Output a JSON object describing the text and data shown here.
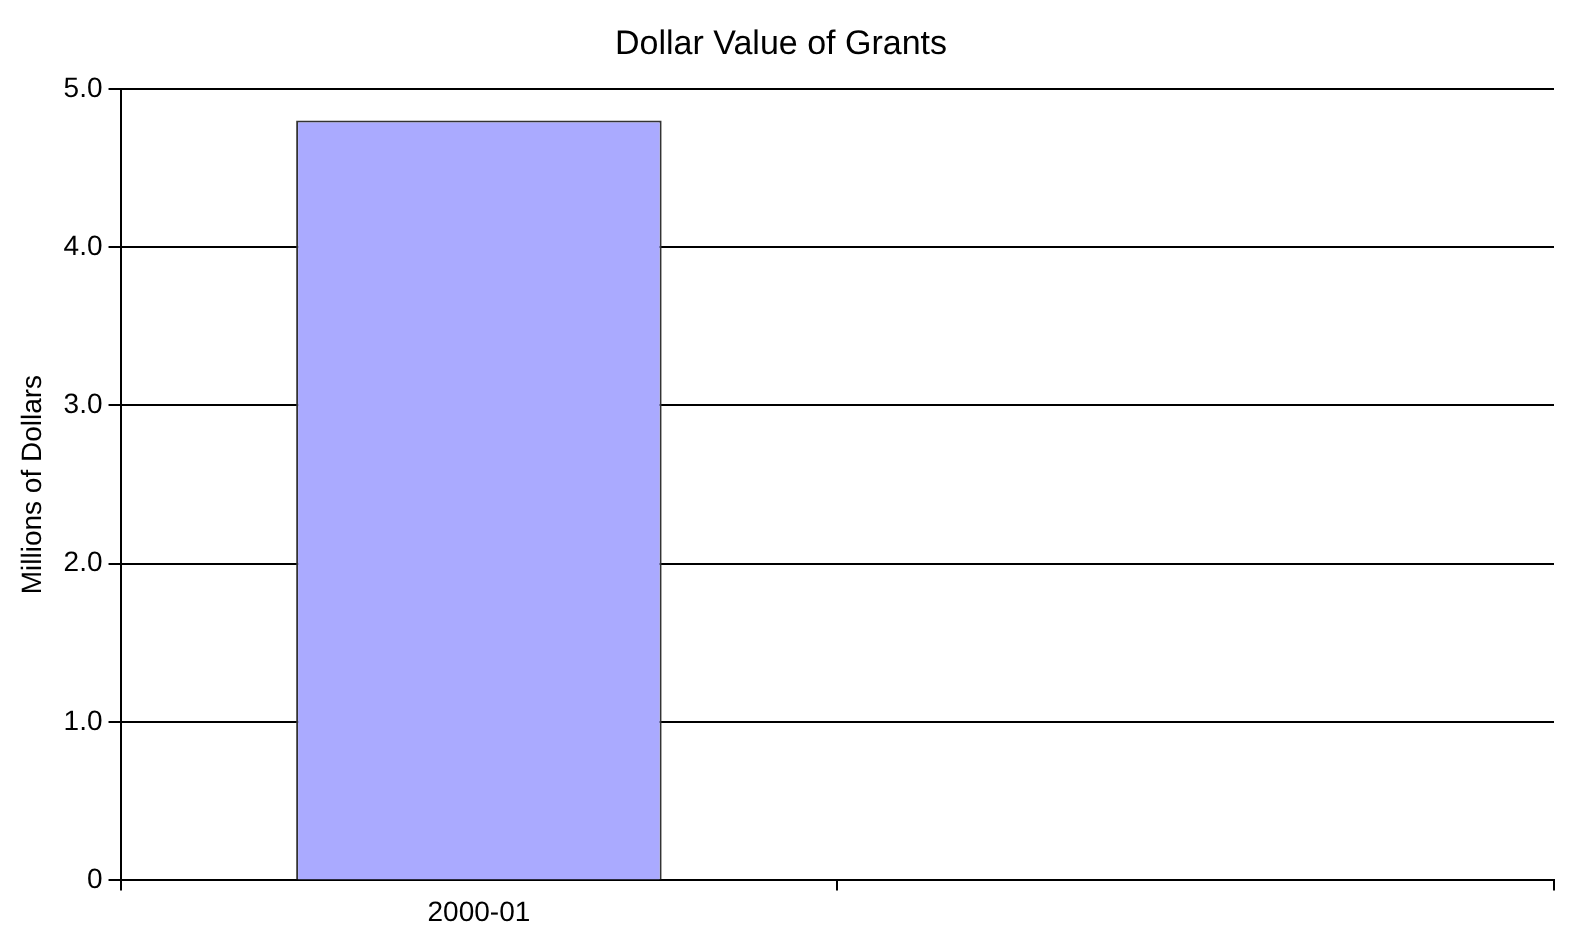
{
  "chart_data": {
    "type": "bar",
    "title": "Dollar Value of Grants",
    "ylabel": "Millions of Dollars",
    "categories": [
      "2000-01",
      null
    ],
    "series": [
      {
        "color": "#aaaaff",
        "values": [
          4.8,
          null
        ]
      }
    ],
    "ylim": [
      0,
      5
    ],
    "yticks": [
      0,
      {
        "value": 1,
        "label": "1.0"
      },
      {
        "value": 2,
        "label": "2.0"
      },
      {
        "value": 3,
        "label": "3.0"
      },
      {
        "value": 4,
        "label": "4.0"
      },
      {
        "value": 5,
        "label": "5.0"
      }
    ],
    "grid": "y",
    "legend": false
  }
}
